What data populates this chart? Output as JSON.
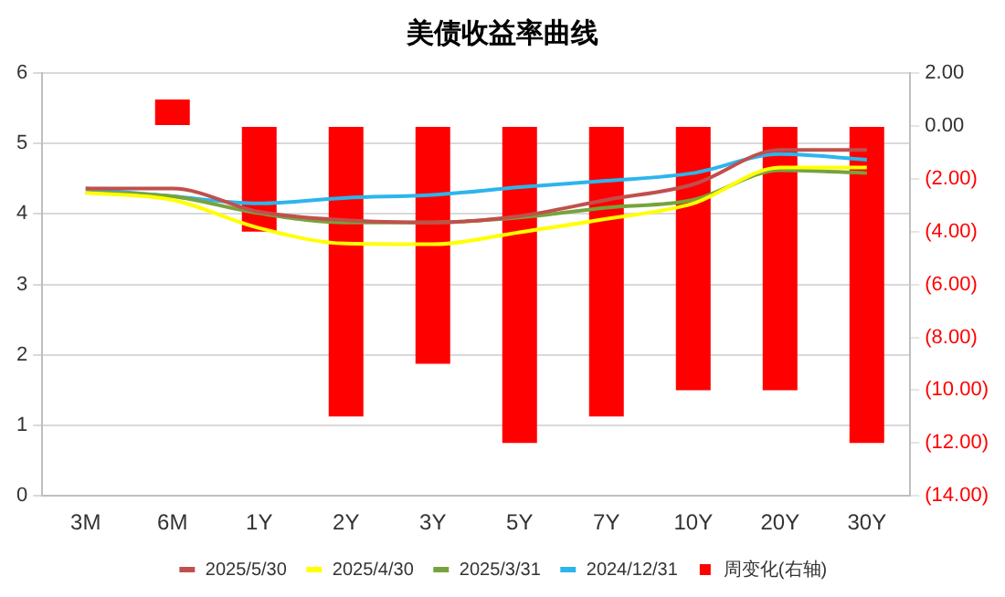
{
  "chart_data": {
    "type": "line",
    "title": "美债收益率曲线",
    "categories": [
      "3M",
      "6M",
      "1Y",
      "2Y",
      "3Y",
      "5Y",
      "7Y",
      "10Y",
      "20Y",
      "30Y"
    ],
    "series": [
      {
        "name": "周变化(右轴)",
        "type": "bar",
        "axis": "y2",
        "color": "#ff0000",
        "values": [
          null,
          1,
          -4,
          -11,
          -9,
          -12,
          -11,
          -10,
          -10,
          -12
        ]
      },
      {
        "name": "2025/5/30",
        "color": "#c0504d",
        "values": [
          4.36,
          4.36,
          4.03,
          3.91,
          3.88,
          3.97,
          4.2,
          4.42,
          4.91,
          4.91
        ]
      },
      {
        "name": "2025/4/30",
        "color": "#ffff00",
        "values": [
          4.3,
          4.2,
          3.8,
          3.58,
          3.57,
          3.74,
          3.93,
          4.15,
          4.66,
          4.66
        ]
      },
      {
        "name": "2025/3/31",
        "color": "#77a33d",
        "values": [
          4.31,
          4.25,
          4.01,
          3.88,
          3.88,
          3.95,
          4.09,
          4.2,
          4.62,
          4.58
        ]
      },
      {
        "name": "2024/12/31",
        "color": "#2cb5ec",
        "values": [
          4.36,
          4.25,
          4.15,
          4.23,
          4.27,
          4.38,
          4.47,
          4.58,
          4.85,
          4.77
        ]
      }
    ],
    "ylim": [
      0,
      6
    ],
    "yticks": [
      0,
      1,
      2,
      3,
      4,
      5,
      6
    ],
    "y2lim": [
      -14,
      2
    ],
    "y2ticks": [
      {
        "value": -14,
        "label": "(14.00)"
      },
      {
        "value": -12,
        "label": "(12.00)"
      },
      {
        "value": -10,
        "label": "(10.00)"
      },
      {
        "value": -8,
        "label": "(8.00)"
      },
      {
        "value": -6,
        "label": "(6.00)"
      },
      {
        "value": -4,
        "label": "(4.00)"
      },
      {
        "value": -2,
        "label": "(2.00)"
      },
      {
        "value": 0,
        "label": "0.00"
      },
      {
        "value": 2,
        "label": "2.00"
      }
    ],
    "grid": "y",
    "legend": "bottom",
    "marker": "none",
    "line_style": "solid"
  }
}
